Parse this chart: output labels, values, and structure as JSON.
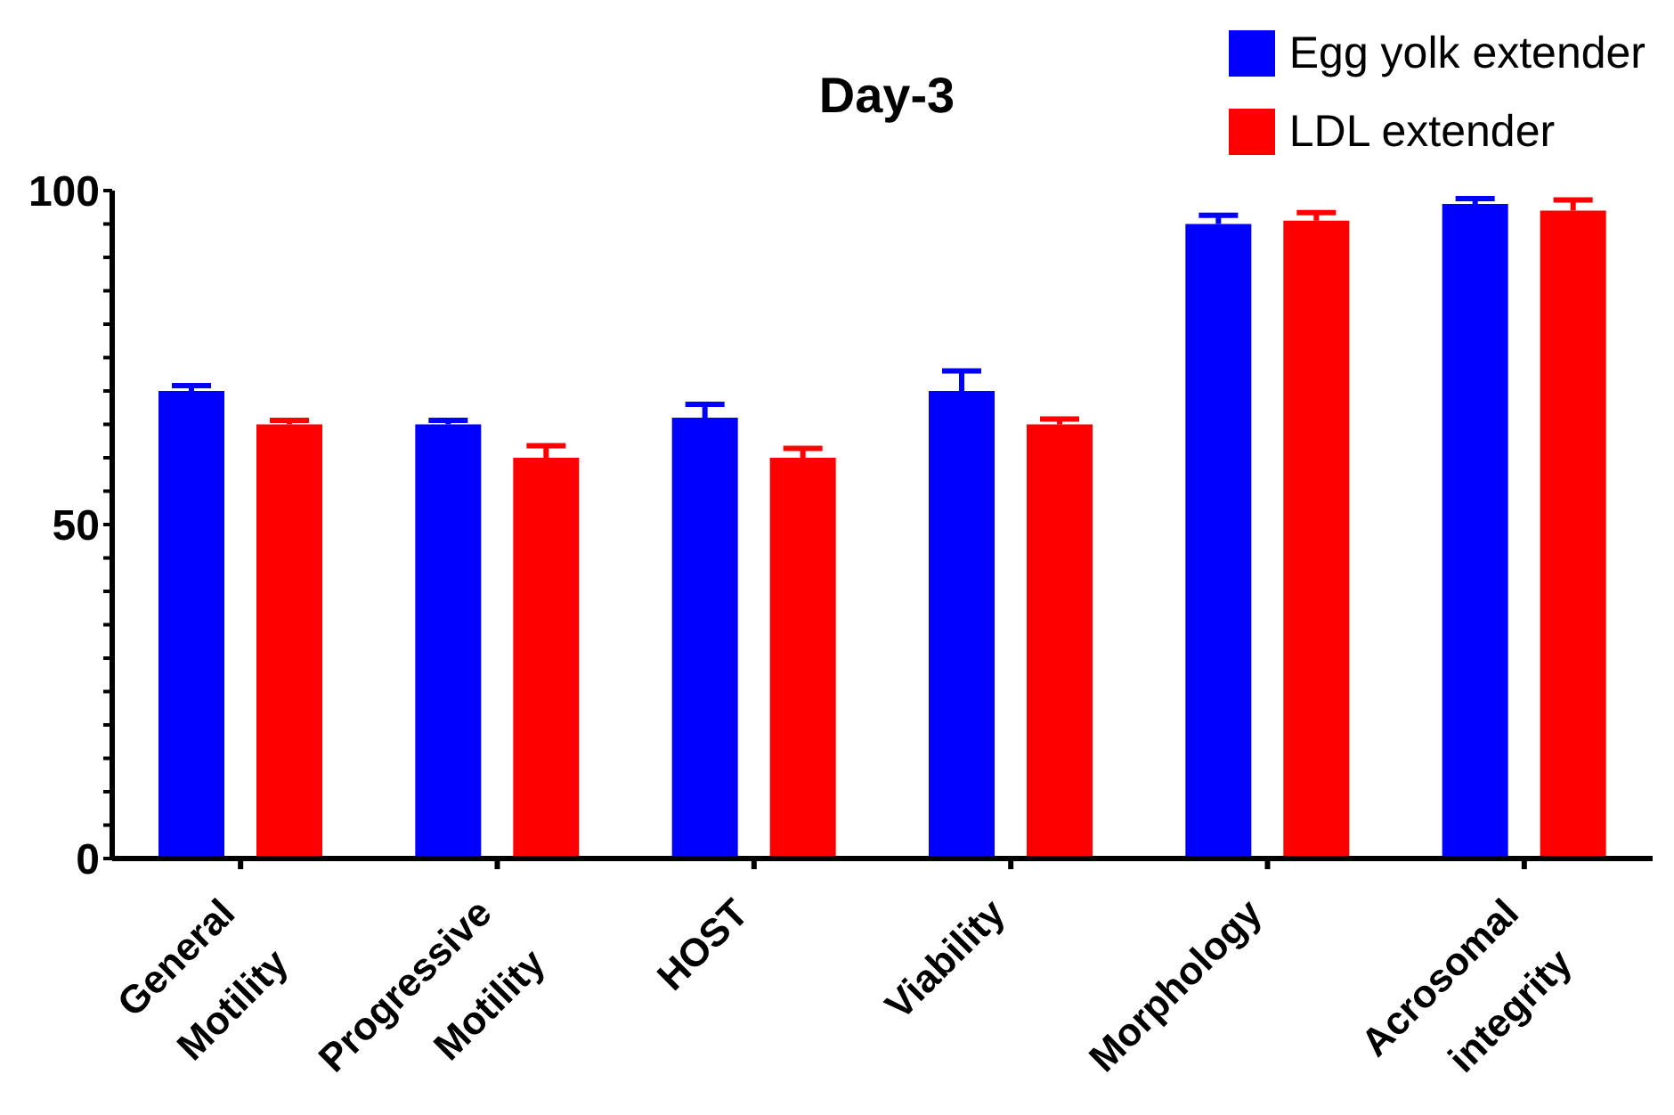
{
  "chart_data": {
    "type": "bar",
    "title": "Day-3",
    "categories": [
      "General Motility",
      "Progressive Motility",
      "HOST",
      "Viability",
      "Morphology",
      "Acrosomal integrity"
    ],
    "series": [
      {
        "name": "Egg yolk extender",
        "color": "#0000ff",
        "values": [
          70,
          65,
          66,
          70,
          95,
          98
        ],
        "errors": [
          0.8,
          0.6,
          2,
          3,
          1.3,
          0.8
        ]
      },
      {
        "name": "LDL extender",
        "color": "#ff0000",
        "values": [
          65,
          60,
          60,
          65,
          95.5,
          97
        ],
        "errors": [
          0.6,
          1.8,
          1.4,
          0.8,
          1.2,
          1.6
        ]
      }
    ],
    "ylim": [
      0,
      100
    ],
    "yticks": [
      0,
      {
        "value": 5,
        "label": null
      },
      {
        "value": 10,
        "label": null
      },
      {
        "value": 15,
        "label": null
      },
      {
        "value": 20,
        "label": null
      },
      {
        "value": 25,
        "label": null
      },
      {
        "value": 30,
        "label": null
      },
      {
        "value": 35,
        "label": null
      },
      {
        "value": 40,
        "label": null
      },
      {
        "value": 45,
        "label": null
      },
      50,
      {
        "value": 55,
        "label": null
      },
      {
        "value": 60,
        "label": null
      },
      {
        "value": 65,
        "label": null
      },
      {
        "value": 70,
        "label": null
      },
      {
        "value": 75,
        "label": null
      },
      {
        "value": 80,
        "label": null
      },
      {
        "value": 85,
        "label": null
      },
      {
        "value": 90,
        "label": null
      },
      {
        "value": 95,
        "label": null
      },
      100
    ],
    "grid": false,
    "legend": "top right"
  }
}
